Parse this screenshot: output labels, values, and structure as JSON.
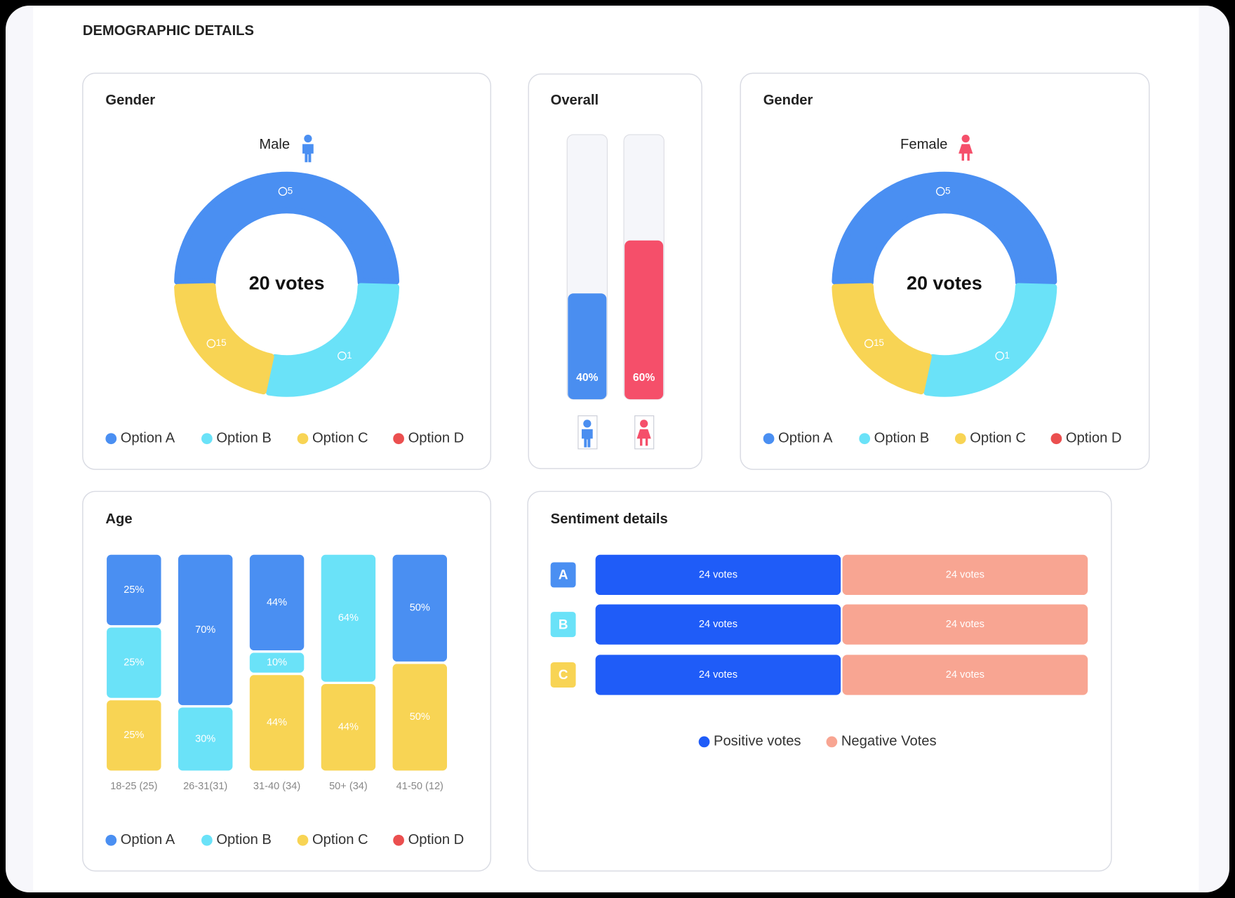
{
  "header": {
    "title": "DEMOGRAPHIC DETAILS"
  },
  "chart_data": [
    {
      "type": "donut",
      "title": "Gender",
      "label": "Male",
      "center_label": "20 votes",
      "categories": [
        "Option A",
        "Option B",
        "Option C",
        "Option D"
      ],
      "colors": [
        "#4a8ff2",
        "#6ae2f8",
        "#f8d454",
        "#eb4f4f"
      ],
      "values": [
        50,
        28,
        22,
        0
      ],
      "comments": [
        5,
        1,
        15,
        null
      ]
    },
    {
      "type": "bar_pair",
      "title": "Overall",
      "values": [
        40,
        60
      ],
      "value_labels": [
        "40%",
        "60%"
      ],
      "colors": [
        "#4a8ef0",
        "#f54f6a"
      ],
      "ylim": [
        0,
        100
      ]
    },
    {
      "type": "donut",
      "title": "Gender",
      "label": "Female",
      "center_label": "20 votes",
      "categories": [
        "Option A",
        "Option B",
        "Option C",
        "Option D"
      ],
      "colors": [
        "#4a8ff2",
        "#6ae2f8",
        "#f8d454",
        "#eb4f4f"
      ],
      "values": [
        50,
        28,
        22,
        0
      ],
      "comments": [
        5,
        1,
        15,
        null
      ]
    },
    {
      "type": "stacked_bar",
      "title": "Age",
      "categories": [
        "18-25 (25)",
        "26-31(31)",
        "31-40 (34)",
        "50+ (34)",
        "41-50 (12)"
      ],
      "series": [
        {
          "name": "Option A",
          "color": "#4a8ff2",
          "values": [
            25,
            70,
            44,
            null,
            50
          ],
          "value_labels": [
            "25%",
            "70%",
            "44%",
            null,
            "50%"
          ]
        },
        {
          "name": "Option B",
          "color": "#6ae2f8",
          "values": [
            25,
            30,
            10,
            64,
            null
          ],
          "value_labels": [
            "25%",
            "30%",
            "10%",
            "64%",
            null
          ]
        },
        {
          "name": "Option C",
          "color": "#f8d454",
          "values": [
            25,
            null,
            44,
            44,
            50
          ],
          "value_labels": [
            "25%",
            null,
            "44%",
            "44%",
            "50%"
          ]
        },
        {
          "name": "Option D",
          "color": "#eb4f4f",
          "values": [
            null,
            null,
            null,
            null,
            null
          ],
          "value_labels": [
            null,
            null,
            null,
            null,
            null
          ]
        }
      ]
    },
    {
      "type": "stacked_barh",
      "title": "Sentiment details",
      "categories": [
        "A",
        "B",
        "C"
      ],
      "category_colors": [
        "#4a8ff2",
        "#6ae2f8",
        "#f8d454"
      ],
      "series": [
        {
          "name": "Positive votes",
          "color": "#1f5cf8",
          "values": [
            24,
            24,
            24
          ],
          "value_labels": [
            "24 votes",
            "24 votes",
            "24 votes"
          ]
        },
        {
          "name": "Negative Votes",
          "color": "#f8a592",
          "values": [
            24,
            24,
            24
          ],
          "value_labels": [
            "24 votes",
            "24 votes",
            "24 votes"
          ]
        }
      ]
    }
  ]
}
